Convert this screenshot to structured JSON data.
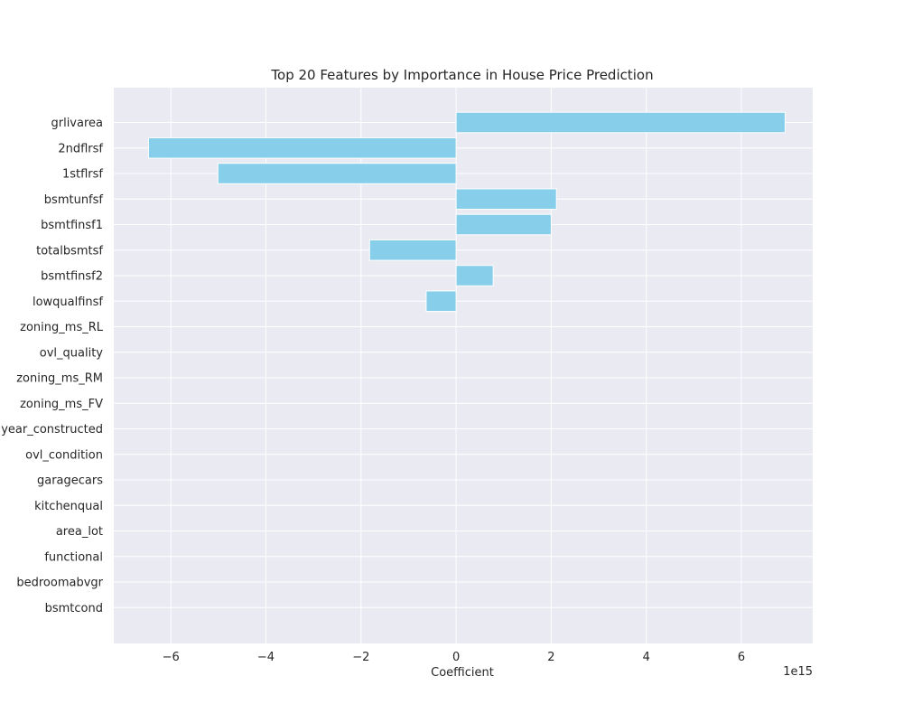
{
  "chart_data": {
    "type": "bar",
    "orientation": "horizontal",
    "title": "Top 20 Features by Importance in House Price Prediction",
    "xlabel": "Coefficient",
    "ylabel": "",
    "x_offset_label": "1e15",
    "x_scale_factor": 1000000000000000.0,
    "xlim": [
      -7.2,
      7.5
    ],
    "x_ticks": [
      -6,
      -4,
      -2,
      0,
      2,
      4,
      6
    ],
    "x_tick_labels": [
      "−6",
      "−4",
      "−2",
      "0",
      "2",
      "4",
      "6"
    ],
    "categories": [
      "grlivarea",
      "2ndflrsf",
      "1stflrsf",
      "bsmtunfsf",
      "bsmtfinsf1",
      "totalbsmtsf",
      "bsmtfinsf2",
      "lowqualfinsf",
      "zoning_ms_RL",
      "ovl_quality",
      "zoning_ms_RM",
      "zoning_ms_FV",
      "year_constructed",
      "ovl_condition",
      "garagecars",
      "kitchenqual",
      "area_lot",
      "functional",
      "bedroomabvgr",
      "bsmtcond"
    ],
    "values": [
      6.92,
      -6.47,
      -5.01,
      2.11,
      2.0,
      -1.82,
      0.78,
      -0.63,
      0,
      0,
      0,
      0,
      0,
      0,
      0,
      0,
      0,
      0,
      0,
      0
    ],
    "bar_color": "#87CEEB",
    "grid": true,
    "background_color": "#EAEAF2",
    "grid_color": "#FFFFFF"
  }
}
